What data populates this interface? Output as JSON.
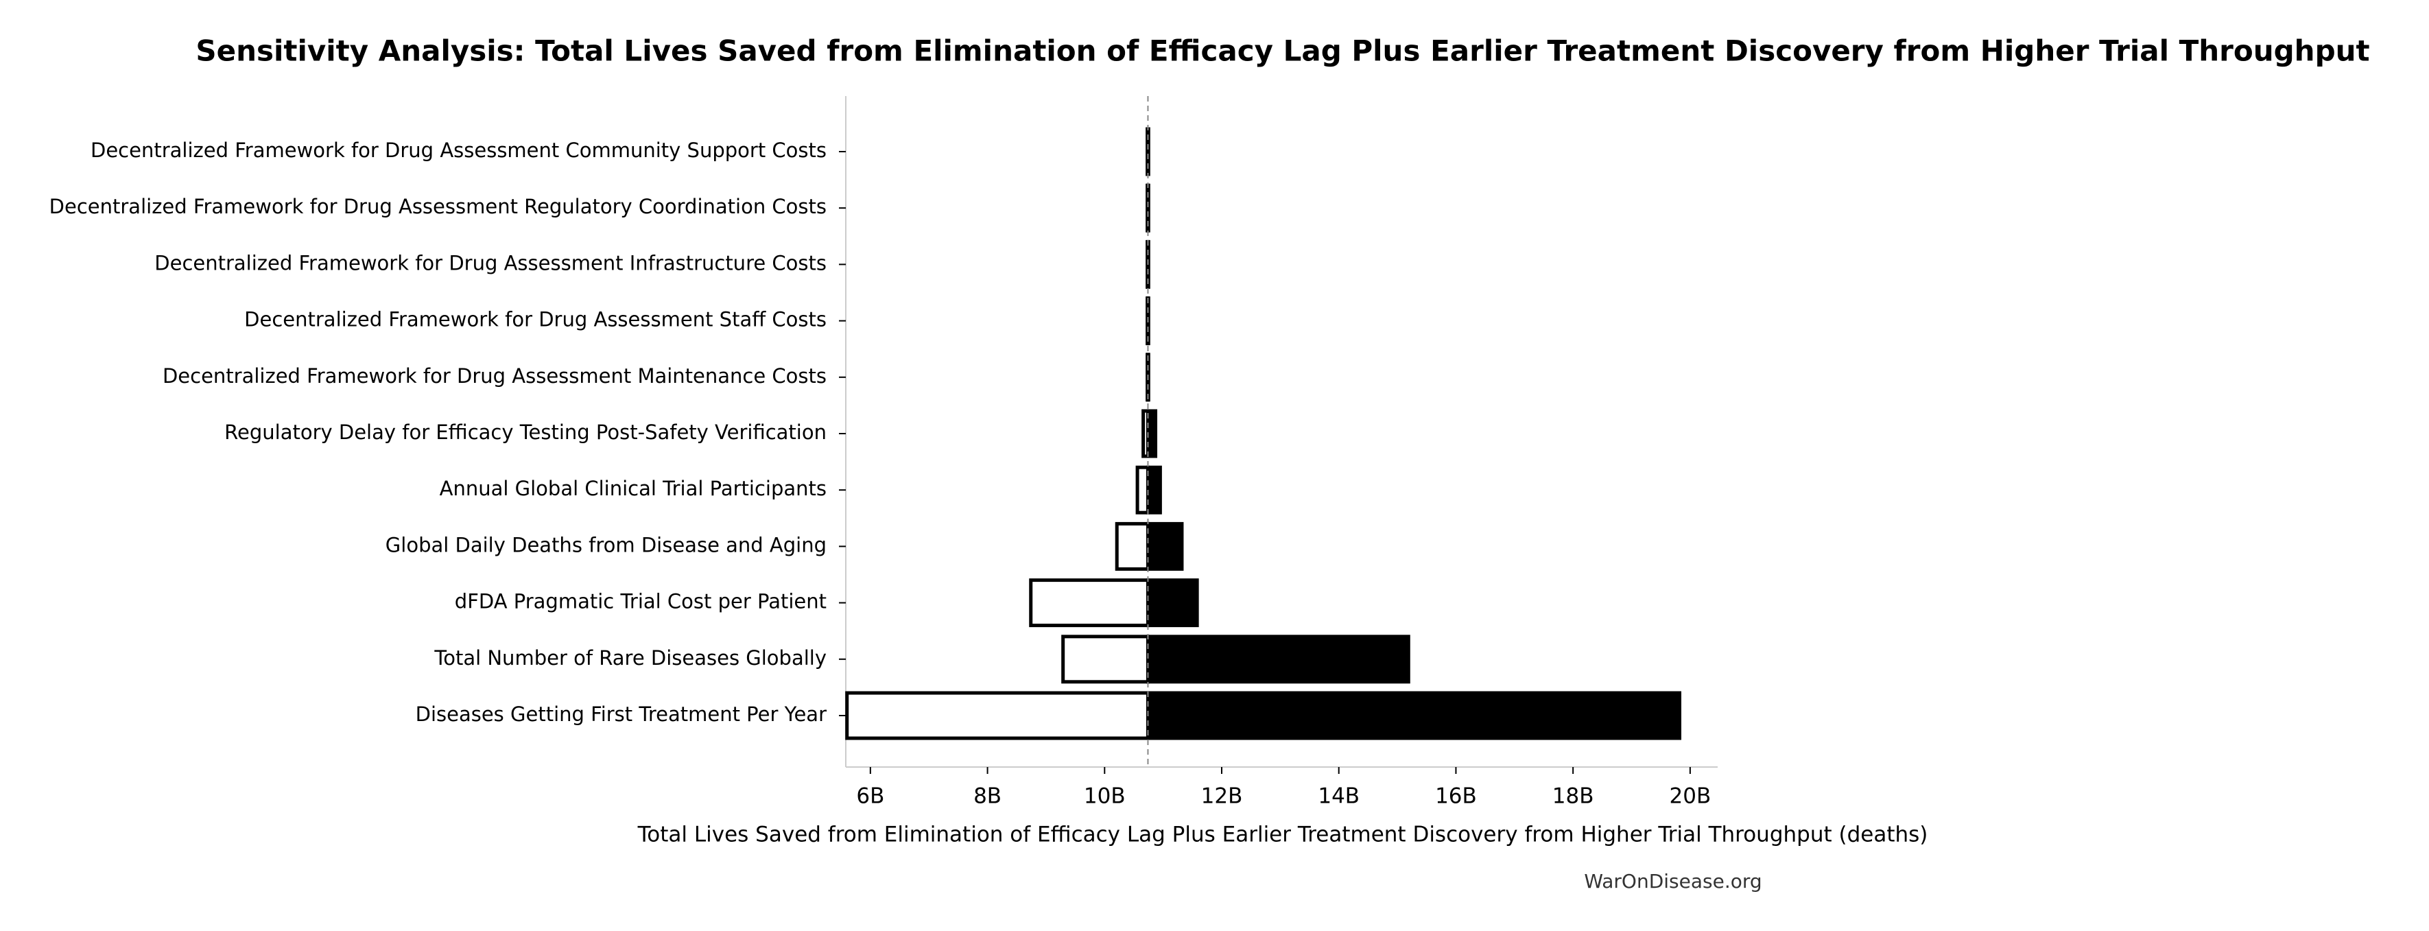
{
  "chart_data": {
    "type": "tornado",
    "title": "Sensitivity Analysis: Total Lives Saved from Elimination of Efficacy Lag Plus Earlier Treatment Discovery from Higher Trial Throughput",
    "x_label": "Total Lives Saved from Elimination of Efficacy Lag Plus Earlier Treatment Discovery from Higher Trial Throughput (deaths)",
    "source": "WarOnDisease.org",
    "categories": [
      "Decentralized Framework for Drug Assessment Community Support Costs",
      "Decentralized Framework for Drug Assessment Regulatory Coordination Costs",
      "Decentralized Framework for Drug Assessment Infrastructure Costs",
      "Decentralized Framework for Drug Assessment Staff Costs",
      "Decentralized Framework for Drug Assessment Maintenance Costs",
      "Regulatory Delay for Efficacy Testing Post-Safety Verification",
      "Annual Global Clinical Trial Participants",
      "Global Daily Deaths from Disease and Aging",
      "dFDA Pragmatic Trial Cost per Patient",
      "Total Number of Rare Diseases Globally",
      "Diseases Getting First Treatment Per Year"
    ],
    "baseline": 10740000000,
    "low_values": [
      10730000000,
      10730000000,
      10730000000,
      10730000000,
      10730000000,
      10660000000,
      10560000000,
      10210000000,
      8740000000,
      9290000000,
      5600000000
    ],
    "high_values": [
      10750000000,
      10750000000,
      10750000000,
      10750000000,
      10750000000,
      10870000000,
      10950000000,
      11320000000,
      11580000000,
      15190000000,
      19820000000
    ],
    "low_color": "#ffffff",
    "high_color": "#000000",
    "xlim": [
      5580000000,
      20470000000
    ],
    "xticks": [
      {
        "value": 6000000000,
        "label": "6B"
      },
      {
        "value": 8000000000,
        "label": "8B"
      },
      {
        "value": 10000000000,
        "label": "10B"
      },
      {
        "value": 12000000000,
        "label": "12B"
      },
      {
        "value": 14000000000,
        "label": "14B"
      },
      {
        "value": 16000000000,
        "label": "16B"
      },
      {
        "value": 18000000000,
        "label": "18B"
      },
      {
        "value": 20000000000,
        "label": "20B"
      }
    ]
  }
}
